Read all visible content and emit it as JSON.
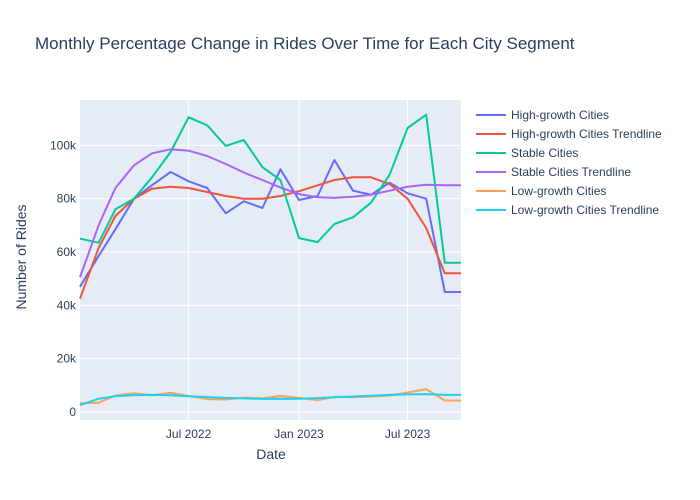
{
  "chart_data": {
    "type": "line",
    "title": "Monthly Percentage Change in Rides Over Time for Each City Segment",
    "xlabel": "Date",
    "ylabel": "Number of Rides",
    "x": [
      "2022-01",
      "2022-02",
      "2022-03",
      "2022-04",
      "2022-05",
      "2022-06",
      "2022-07",
      "2022-08",
      "2022-09",
      "2022-10",
      "2022-11",
      "2022-12",
      "2023-01",
      "2023-02",
      "2023-03",
      "2023-04",
      "2023-05",
      "2023-06",
      "2023-07",
      "2023-08",
      "2023-09",
      "2023-10"
    ],
    "x_ticks": [
      {
        "date": "2022-07",
        "label": "Jul 2022"
      },
      {
        "date": "2023-01",
        "label": "Jan 2023"
      },
      {
        "date": "2023-07",
        "label": "Jul 2023"
      }
    ],
    "y_ticks": [
      {
        "value": 0,
        "label": "0"
      },
      {
        "value": 20000,
        "label": "20k"
      },
      {
        "value": 40000,
        "label": "40k"
      },
      {
        "value": 60000,
        "label": "60k"
      },
      {
        "value": 80000,
        "label": "80k"
      },
      {
        "value": 100000,
        "label": "100k"
      }
    ],
    "ylim": [
      -3000,
      117000
    ],
    "grid": true,
    "legend_position": "right",
    "plot_background": "#e5ecf6",
    "series": [
      {
        "name": "High-growth Cities",
        "color": "#636efa",
        "values": [
          47000,
          58500,
          68500,
          80000,
          85000,
          90000,
          86500,
          84000,
          74500,
          79000,
          76500,
          91000,
          79500,
          81000,
          94500,
          83000,
          81500,
          86000,
          82000,
          80000,
          45000,
          45000
        ]
      },
      {
        "name": "High-growth Cities Trendline",
        "color": "#ef553b",
        "values": [
          42500,
          61500,
          73500,
          80000,
          83700,
          84500,
          84000,
          82500,
          81000,
          80000,
          80000,
          81000,
          82800,
          85000,
          87000,
          88000,
          88000,
          85500,
          80000,
          69000,
          52000,
          52000
        ]
      },
      {
        "name": "Stable Cities",
        "color": "#00cc96",
        "values": [
          65000,
          63500,
          76000,
          80000,
          88000,
          97500,
          110500,
          107500,
          99800,
          102000,
          91800,
          87000,
          65200,
          63700,
          70500,
          73000,
          78500,
          89000,
          106500,
          111500,
          56000,
          56000
        ]
      },
      {
        "name": "Stable Cities Trendline",
        "color": "#ab63fa",
        "values": [
          50500,
          70000,
          84000,
          92500,
          97000,
          98500,
          98000,
          96000,
          93000,
          89800,
          87000,
          84200,
          81700,
          80500,
          80300,
          80700,
          81500,
          83000,
          84500,
          85200,
          85000,
          85000
        ]
      },
      {
        "name": "Low-growth Cities",
        "color": "#ffa15a",
        "values": [
          3300,
          3500,
          6200,
          7000,
          6300,
          7200,
          6000,
          4800,
          4700,
          5400,
          5100,
          6000,
          5300,
          4400,
          5700,
          5500,
          5800,
          6200,
          7300,
          8600,
          4300,
          4300
        ]
      },
      {
        "name": "Low-growth Cities Trendline",
        "color": "#19d3f3",
        "values": [
          2600,
          5000,
          5900,
          6300,
          6400,
          6300,
          5900,
          5600,
          5300,
          5100,
          4900,
          4900,
          5000,
          5200,
          5500,
          5800,
          6100,
          6400,
          6600,
          6700,
          6400,
          6400
        ]
      }
    ]
  }
}
